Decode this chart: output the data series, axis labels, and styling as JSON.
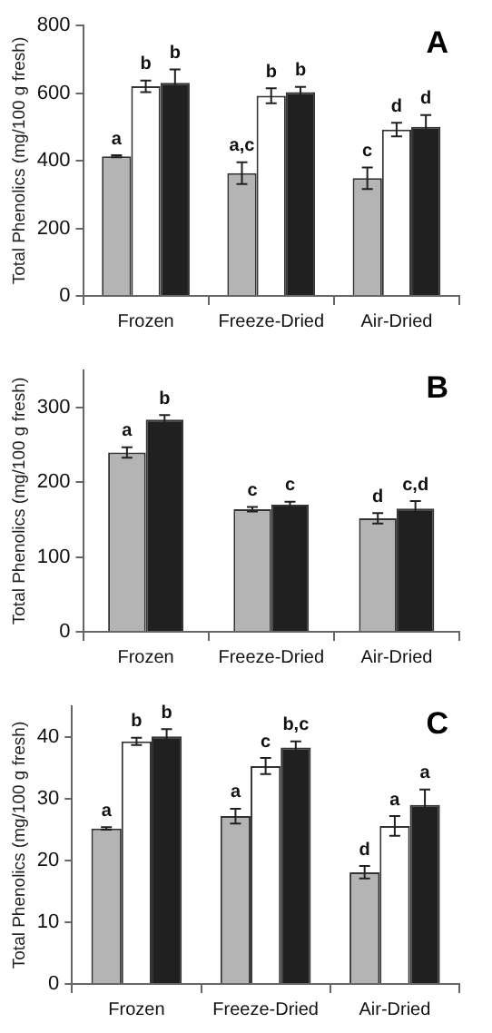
{
  "chart_data": [
    {
      "type": "bar",
      "title": "A",
      "ylabel": "Total Phenolics (mg/100 g fresh)",
      "categories": [
        "Frozen",
        "Freeze-Dried",
        "Air-Dried"
      ],
      "ylim": [
        0,
        800
      ],
      "yticks": [
        0,
        200,
        400,
        600,
        800
      ],
      "legend": false,
      "grid": false,
      "series": [
        {
          "color": "#b4b4b4",
          "values": [
            413,
            363,
            348
          ],
          "errors": [
            3,
            32,
            32
          ],
          "value_labels": [
            "a",
            "a,c",
            "c"
          ]
        },
        {
          "color": "#ffffff",
          "values": [
            620,
            592,
            492
          ],
          "errors": [
            17,
            22,
            20
          ],
          "value_labels": [
            "b",
            "b",
            "d"
          ]
        },
        {
          "color": "#202020",
          "values": [
            630,
            603,
            500
          ],
          "errors": [
            40,
            15,
            35
          ],
          "value_labels": [
            "b",
            "b",
            "d"
          ]
        }
      ]
    },
    {
      "type": "bar",
      "title": "B",
      "ylabel": "Total Phenolics (mg/100 g fresh)",
      "categories": [
        "Frozen",
        "Freeze-Dried",
        "Air-Dried"
      ],
      "ylim": [
        0,
        350
      ],
      "yticks": [
        0,
        100,
        200,
        300
      ],
      "legend": false,
      "grid": false,
      "series": [
        {
          "color": "#b4b4b4",
          "values": [
            240,
            164,
            152
          ],
          "errors": [
            7,
            3,
            7
          ],
          "value_labels": [
            "a",
            "c",
            "d"
          ]
        },
        {
          "color": "#202020",
          "values": [
            284,
            170,
            165
          ],
          "errors": [
            6,
            4,
            10
          ],
          "value_labels": [
            "b",
            "c",
            "c,d"
          ]
        }
      ]
    },
    {
      "type": "bar",
      "title": "C",
      "ylabel": "Total Phenolics (mg/100 g fresh)",
      "categories": [
        "Frozen",
        "Freeze-Dried",
        "Air-Dried"
      ],
      "ylim": [
        0,
        45
      ],
      "yticks": [
        0,
        10,
        20,
        30,
        40
      ],
      "legend": false,
      "grid": false,
      "series": [
        {
          "color": "#b4b4b4",
          "values": [
            25.2,
            27.2,
            18.1
          ],
          "errors": [
            0.2,
            1.2,
            1
          ],
          "value_labels": [
            "a",
            "a",
            "d"
          ]
        },
        {
          "color": "#ffffff",
          "values": [
            39.3,
            35.3,
            25.6
          ],
          "errors": [
            0.6,
            1.3,
            1.6
          ],
          "value_labels": [
            "b",
            "c",
            "a"
          ]
        },
        {
          "color": "#202020",
          "values": [
            40.1,
            38.3,
            29
          ],
          "errors": [
            1.2,
            1,
            2.5
          ],
          "value_labels": [
            "b",
            "b,c",
            "a"
          ]
        }
      ]
    }
  ]
}
